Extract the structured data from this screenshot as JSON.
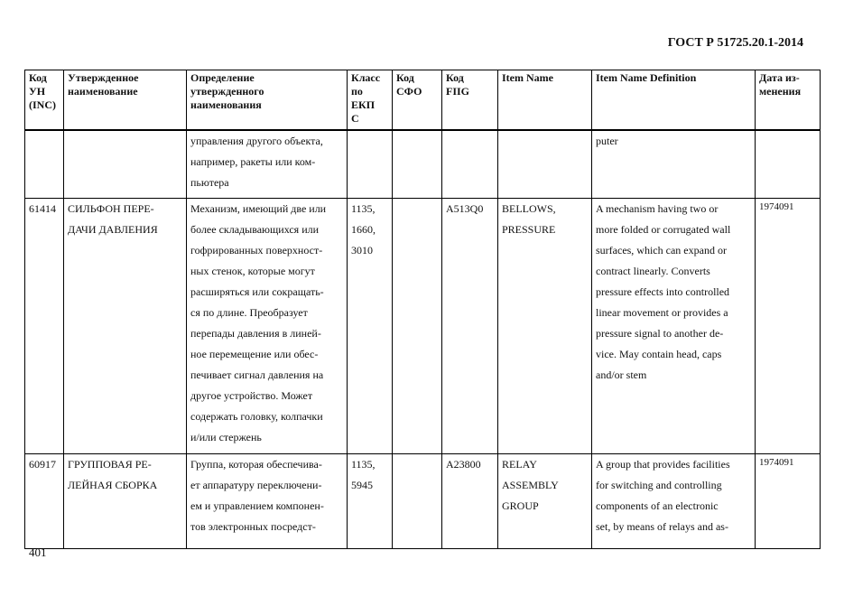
{
  "header": {
    "doc_id": "ГОСТ Р 51725.20.1-2014"
  },
  "table": {
    "columns": [
      "Код УН (INC)",
      "Утвержденное наименование",
      "Определение утвержденного наименования",
      "Класс по ЕКП С",
      "Код СФО",
      "Код FIIG",
      "Item Name",
      "Item Name Definition",
      "Дата из-менения"
    ],
    "column_lines": [
      [
        "Код",
        "УН",
        "(INC)"
      ],
      [
        "Утвержденное",
        "наименование"
      ],
      [
        "Определение",
        "утвержденного",
        "наименования"
      ],
      [
        "Класс",
        "по",
        "ЕКП",
        "С"
      ],
      [
        "Код",
        "СФО"
      ],
      [
        "Код",
        "FIIG"
      ],
      [
        "Item Name"
      ],
      [
        "Item Name Definition"
      ],
      [
        "Дата из-",
        "менения"
      ]
    ],
    "rows": [
      {
        "inc": "",
        "name": [],
        "definition": [
          "управления другого объекта,",
          "например, ракеты или ком-",
          "пьютера"
        ],
        "class": [],
        "sfo": "",
        "fiig": "",
        "item_name": [],
        "item_def": [
          "puter"
        ],
        "date": ""
      },
      {
        "inc": "61414",
        "name": [
          "СИЛЬФОН ПЕРЕ-",
          "ДАЧИ ДАВЛЕНИЯ"
        ],
        "definition": [
          "Механизм, имеющий две или",
          "более складывающихся или",
          "гофрированных поверхност-",
          "ных стенок, которые могут",
          "расширяться или сокращать-",
          "ся по длине. Преобразует",
          "перепады давления в линей-",
          "ное перемещение или обес-",
          "печивает сигнал давления на",
          "другое устройство. Может",
          "содержать головку, колпачки",
          "и/или стержень"
        ],
        "class": [
          "1135,",
          "1660,",
          "3010"
        ],
        "sfo": "",
        "fiig": "A513Q0",
        "item_name": [
          "BELLOWS,",
          "PRESSURE"
        ],
        "item_def": [
          "A mechanism having two or",
          "more folded or corrugated wall",
          "surfaces, which can expand or",
          "contract linearly. Converts",
          "pressure effects into controlled",
          "linear movement or provides a",
          "pressure signal to another de-",
          "vice. May contain head, caps",
          "and/or stem"
        ],
        "date": "1974091"
      },
      {
        "inc": "60917",
        "name": [
          "ГРУППОВАЯ РЕ-",
          "ЛЕЙНАЯ СБОРКА"
        ],
        "definition": [
          "Группа, которая обеспечива-",
          "ет аппаратуру  переключени-",
          "ем и управлением компонен-",
          "тов электронных посредст-"
        ],
        "class": [
          "1135,",
          "5945"
        ],
        "sfo": "",
        "fiig": "A23800",
        "item_name": [
          "RELAY",
          "ASSEMBLY",
          "GROUP"
        ],
        "item_def": [
          "A group that provides facilities",
          "for switching and controlling",
          "components of an electronic",
          "set, by means of relays and as-"
        ],
        "date": "1974091"
      }
    ]
  },
  "footer": {
    "page_number": "401"
  }
}
